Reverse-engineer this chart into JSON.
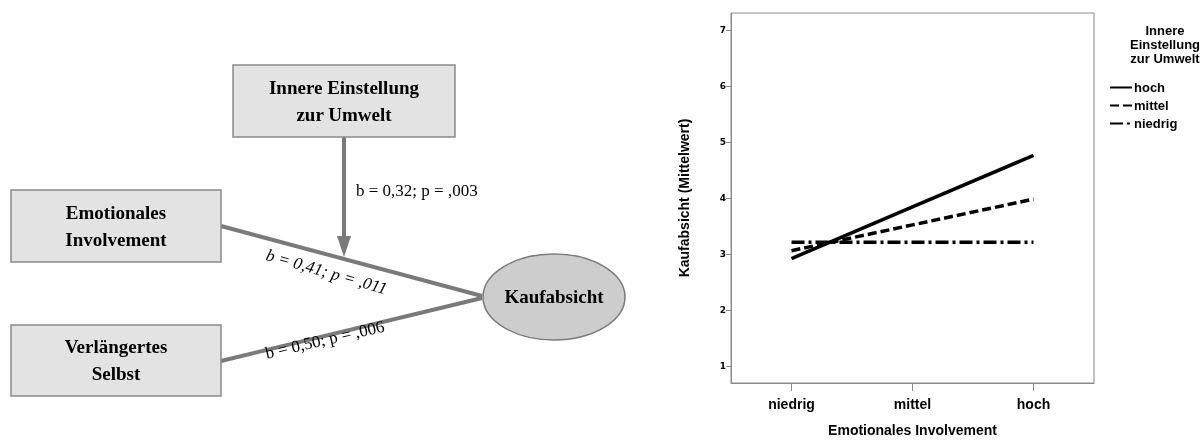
{
  "chart_data": [
    {
      "type": "other",
      "annotations": [
        "Innere Einstellung zur Umwelt",
        "Emotionales Involvement",
        "Verlängertes Selbst",
        "Kaufabsicht",
        "b = 0,32; p = ,003",
        "b = 0,41; p = ,011",
        "b = 0,50; p = ,006"
      ]
    },
    {
      "type": "line",
      "xlabel": "Emotionales Involvement",
      "ylabel": "Kaufabsicht (Mittelwert)",
      "legend_title": "Innere Einstellung zur Umwelt",
      "categories": [
        "niedrig",
        "mittel",
        "hoch"
      ],
      "ylim": [
        0.7,
        7.3
      ],
      "yticks": [
        1,
        2,
        3,
        4,
        5,
        6,
        7
      ],
      "grid": false,
      "legend": "right",
      "marker": "none",
      "series": [
        {
          "name": "hoch",
          "color": "#000000",
          "line_style": "solid",
          "values": [
            2.92,
            3.84,
            4.76
          ]
        },
        {
          "name": "mittel",
          "color": "#000000",
          "line_style": "dashed",
          "values": [
            3.06,
            3.52,
            3.98
          ]
        },
        {
          "name": "niedrig",
          "color": "#000000",
          "line_style": "dashdot",
          "values": [
            3.21,
            3.21,
            3.21
          ]
        }
      ]
    }
  ]
}
